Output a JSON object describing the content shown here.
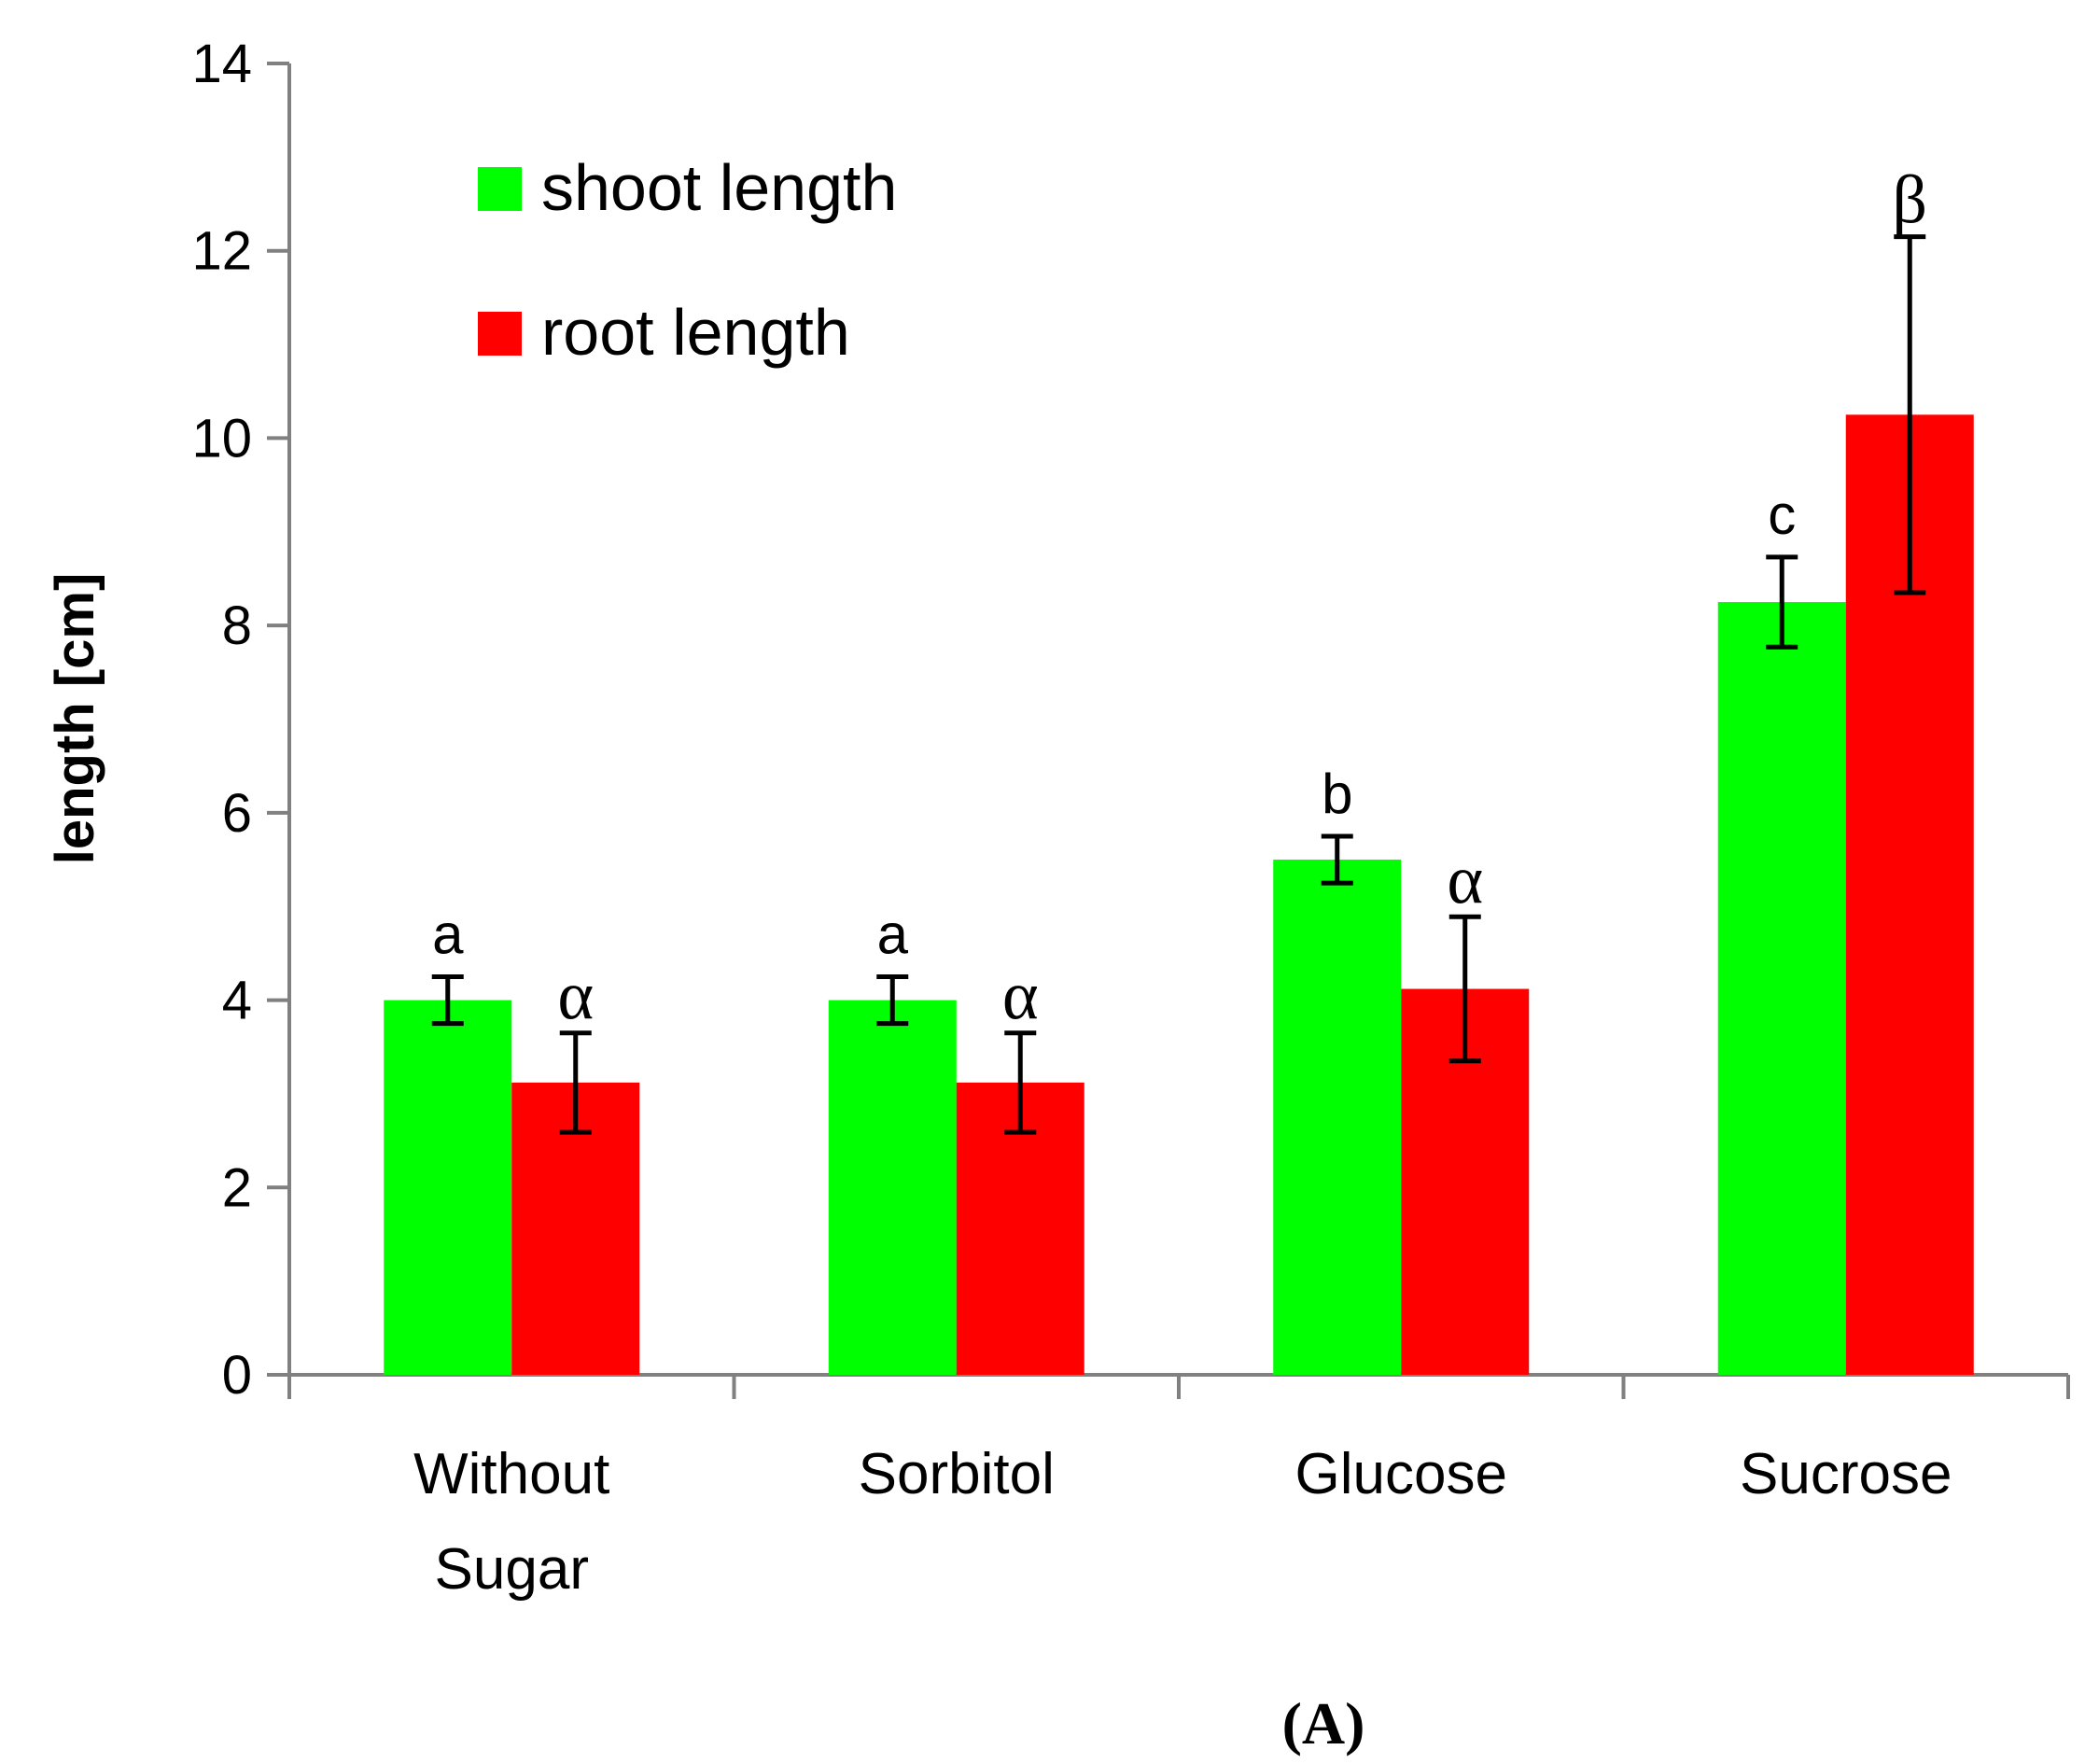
{
  "chart_data": {
    "type": "bar",
    "title": "",
    "xlabel": "",
    "ylabel": "length [cm]",
    "ylim": [
      0,
      14
    ],
    "yticks": [
      0,
      2,
      4,
      6,
      8,
      10,
      12,
      14
    ],
    "ytick_labels": [
      "0",
      "2",
      "4",
      "6",
      "8",
      "10",
      "12",
      "14"
    ],
    "grid": false,
    "legend_position": "top-left",
    "categories": [
      [
        "Without",
        "Sugar"
      ],
      [
        "Sorbitol"
      ],
      [
        "Glucose"
      ],
      [
        "Sucrose"
      ]
    ],
    "series": [
      {
        "name": "shoot length",
        "color": "#00ff00",
        "values": [
          4.0,
          4.0,
          5.5,
          8.25
        ],
        "errors": [
          0.25,
          0.25,
          0.25,
          0.48
        ],
        "letters": [
          "a",
          "a",
          "b",
          "c"
        ]
      },
      {
        "name": "root length",
        "color": "#ff0000",
        "values": [
          3.12,
          3.12,
          4.12,
          10.25
        ],
        "errors": [
          0.53,
          0.53,
          0.77,
          1.9
        ],
        "letters": [
          "α",
          "α",
          "α",
          "β"
        ]
      }
    ],
    "caption": "(A)"
  }
}
